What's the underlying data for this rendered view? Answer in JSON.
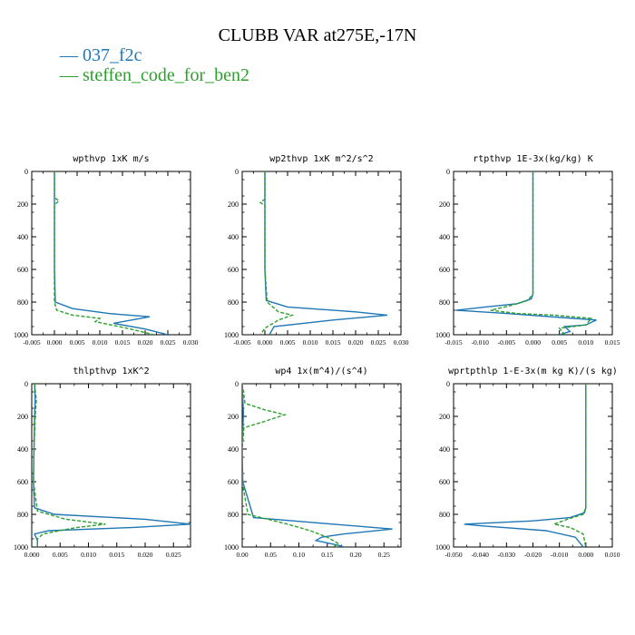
{
  "figure": {
    "title": "CLUBB VAR at275E,-17N",
    "legend": [
      {
        "label": "037_f2c",
        "color": "#1f77b4",
        "style": "solid"
      },
      {
        "label": "steffen_code_for_ben2",
        "color": "#2ca02c",
        "style": "dashed"
      }
    ]
  },
  "chart_data": [
    {
      "type": "line",
      "title": "wpthvp  1xK m/s",
      "xlim": [
        -0.005,
        0.03
      ],
      "xticks": [
        "-0.005",
        "0.000",
        "0.005",
        "0.010",
        "0.015",
        "0.020",
        "0.025",
        "0.030"
      ],
      "ylim": [
        1000,
        0
      ],
      "yticks": [
        "0",
        "200",
        "400",
        "600",
        "800",
        "1000"
      ],
      "series": [
        {
          "name": "037_f2c",
          "color": "#1f77b4",
          "x": [
            0,
            0,
            0,
            0,
            0.0002,
            0.004,
            0.012,
            0.021,
            0.013,
            0.02,
            0.025
          ],
          "y": [
            0,
            200,
            400,
            600,
            800,
            840,
            870,
            890,
            930,
            965,
            1000
          ]
        },
        {
          "name": "steffen_code_for_ben2",
          "color": "#2ca02c",
          "dashed": true,
          "x": [
            0,
            0,
            0.001,
            0,
            0,
            0,
            0,
            0.0005,
            0.004,
            0.01,
            0.009,
            0.016,
            0.022
          ],
          "y": [
            0,
            160,
            180,
            205,
            400,
            600,
            800,
            850,
            880,
            900,
            920,
            960,
            1000
          ]
        }
      ]
    },
    {
      "type": "line",
      "title": "wp2thvp  1xK m^2/s^2",
      "xlim": [
        -0.005,
        0.03
      ],
      "xticks": [
        "-0.005",
        "0.000",
        "0.005",
        "0.010",
        "0.015",
        "0.020",
        "0.025",
        "0.030"
      ],
      "ylim": [
        1000,
        0
      ],
      "yticks": [
        "0",
        "200",
        "400",
        "600",
        "800",
        "1000"
      ],
      "series": [
        {
          "name": "037_f2c",
          "color": "#1f77b4",
          "x": [
            0,
            0,
            0,
            0,
            0.0003,
            0.005,
            0.02,
            0.027,
            0.015,
            0.002,
            0.001
          ],
          "y": [
            0,
            200,
            400,
            600,
            790,
            830,
            860,
            880,
            910,
            950,
            1000
          ]
        },
        {
          "name": "steffen_code_for_ben2",
          "color": "#2ca02c",
          "dashed": true,
          "x": [
            0,
            0,
            -0.001,
            0,
            0,
            0,
            0.0005,
            0.003,
            0.006,
            0.003,
            0,
            -0.001
          ],
          "y": [
            0,
            170,
            190,
            210,
            400,
            600,
            800,
            860,
            880,
            910,
            960,
            1000
          ]
        }
      ]
    },
    {
      "type": "line",
      "title": "rtpthvp  1E-3x(kg/kg) K",
      "xlim": [
        -0.015,
        0.015
      ],
      "xticks": [
        "-0.015",
        "-0.010",
        "-0.005",
        "0.000",
        "0.005",
        "0.010",
        "0.015"
      ],
      "ylim": [
        1000,
        0
      ],
      "yticks": [
        "0",
        "200",
        "400",
        "600",
        "800",
        "1000"
      ],
      "series": [
        {
          "name": "037_f2c",
          "color": "#1f77b4",
          "x": [
            0,
            0,
            0,
            -0.0003,
            -0.003,
            -0.009,
            -0.0145,
            -0.005,
            0.012,
            0.01,
            0.006,
            0.007,
            0.005
          ],
          "y": [
            0,
            400,
            750,
            780,
            810,
            830,
            850,
            870,
            910,
            940,
            950,
            980,
            1000
          ]
        },
        {
          "name": "steffen_code_for_ben2",
          "color": "#2ca02c",
          "dashed": true,
          "x": [
            0,
            0,
            0,
            -0.001,
            -0.004,
            -0.008,
            -0.003,
            0.004,
            0.011,
            0.01,
            0.005,
            0.006
          ],
          "y": [
            0,
            400,
            750,
            790,
            820,
            850,
            870,
            880,
            900,
            940,
            960,
            1000
          ]
        }
      ]
    },
    {
      "type": "line",
      "title": "thlpthvp  1xK^2",
      "xlim": [
        0,
        0.028
      ],
      "xticks": [
        "0.000",
        "0.005",
        "0.010",
        "0.015",
        "0.020",
        "0.025"
      ],
      "ylim": [
        1000,
        0
      ],
      "yticks": [
        "0",
        "200",
        "400",
        "600",
        "800",
        "1000"
      ],
      "series": [
        {
          "name": "037_f2c",
          "color": "#1f77b4",
          "x": [
            0.0005,
            0.0006,
            0.0005,
            0.0004,
            0.0003,
            0.0005,
            0.004,
            0.02,
            0.028,
            0.018,
            0.003,
            0.0005,
            0.001,
            0.001
          ],
          "y": [
            0,
            100,
            200,
            400,
            600,
            760,
            800,
            830,
            860,
            880,
            900,
            920,
            960,
            1000
          ]
        },
        {
          "name": "steffen_code_for_ben2",
          "color": "#2ca02c",
          "dashed": true,
          "x": [
            0.0005,
            0.0008,
            0.0006,
            0.0004,
            0.0003,
            0.001,
            0.006,
            0.013,
            0.008,
            0.002,
            0.001,
            0.001
          ],
          "y": [
            0,
            100,
            200,
            400,
            600,
            780,
            830,
            860,
            880,
            920,
            950,
            1000
          ]
        }
      ]
    },
    {
      "type": "line",
      "title": "wp4  1x(m^4)/(s^4)",
      "xlim": [
        0,
        0.28
      ],
      "xticks": [
        "0.00",
        "0.05",
        "0.10",
        "0.15",
        "0.20",
        "0.25"
      ],
      "ylim": [
        1000,
        0
      ],
      "yticks": [
        "0",
        "200",
        "400",
        "600",
        "800",
        "1000"
      ],
      "series": [
        {
          "name": "037_f2c",
          "color": "#1f77b4",
          "x": [
            0,
            0.002,
            0.001,
            0,
            0,
            0.001,
            0.02,
            0.16,
            0.265,
            0.18,
            0.14,
            0.13,
            0.17,
            0.18
          ],
          "y": [
            0,
            180,
            300,
            350,
            400,
            600,
            820,
            860,
            890,
            920,
            940,
            960,
            990,
            1000
          ]
        },
        {
          "name": "steffen_code_for_ben2",
          "color": "#2ca02c",
          "dashed": true,
          "x": [
            0,
            0.005,
            0.04,
            0.075,
            0.04,
            0.003,
            0,
            0,
            0.01,
            0.08,
            0.12,
            0.15,
            0.17,
            0.16
          ],
          "y": [
            0,
            120,
            160,
            190,
            230,
            270,
            400,
            600,
            800,
            860,
            900,
            940,
            980,
            1000
          ]
        }
      ]
    },
    {
      "type": "line",
      "title": "wprtpthlp  1-E-3x(m kg K)/(s kg)",
      "xlim": [
        -0.05,
        0.01
      ],
      "xticks": [
        "-0.050",
        "-0.040",
        "-0.030",
        "-0.020",
        "-0.010",
        "0.000",
        "0.010"
      ],
      "ylim": [
        1000,
        0
      ],
      "yticks": [
        "0",
        "200",
        "400",
        "600",
        "800",
        "1000"
      ],
      "series": [
        {
          "name": "037_f2c",
          "color": "#1f77b4",
          "x": [
            0,
            0,
            0,
            -0.0005,
            -0.006,
            -0.02,
            -0.046,
            -0.04,
            -0.015,
            -0.004,
            -0.001
          ],
          "y": [
            0,
            400,
            760,
            790,
            820,
            840,
            860,
            870,
            900,
            940,
            1000
          ]
        },
        {
          "name": "steffen_code_for_ben2",
          "color": "#2ca02c",
          "dashed": true,
          "x": [
            0,
            0,
            0,
            -0.001,
            -0.007,
            -0.012,
            -0.006,
            -0.001,
            0
          ],
          "y": [
            0,
            400,
            760,
            800,
            830,
            860,
            880,
            920,
            1000
          ]
        }
      ]
    }
  ]
}
